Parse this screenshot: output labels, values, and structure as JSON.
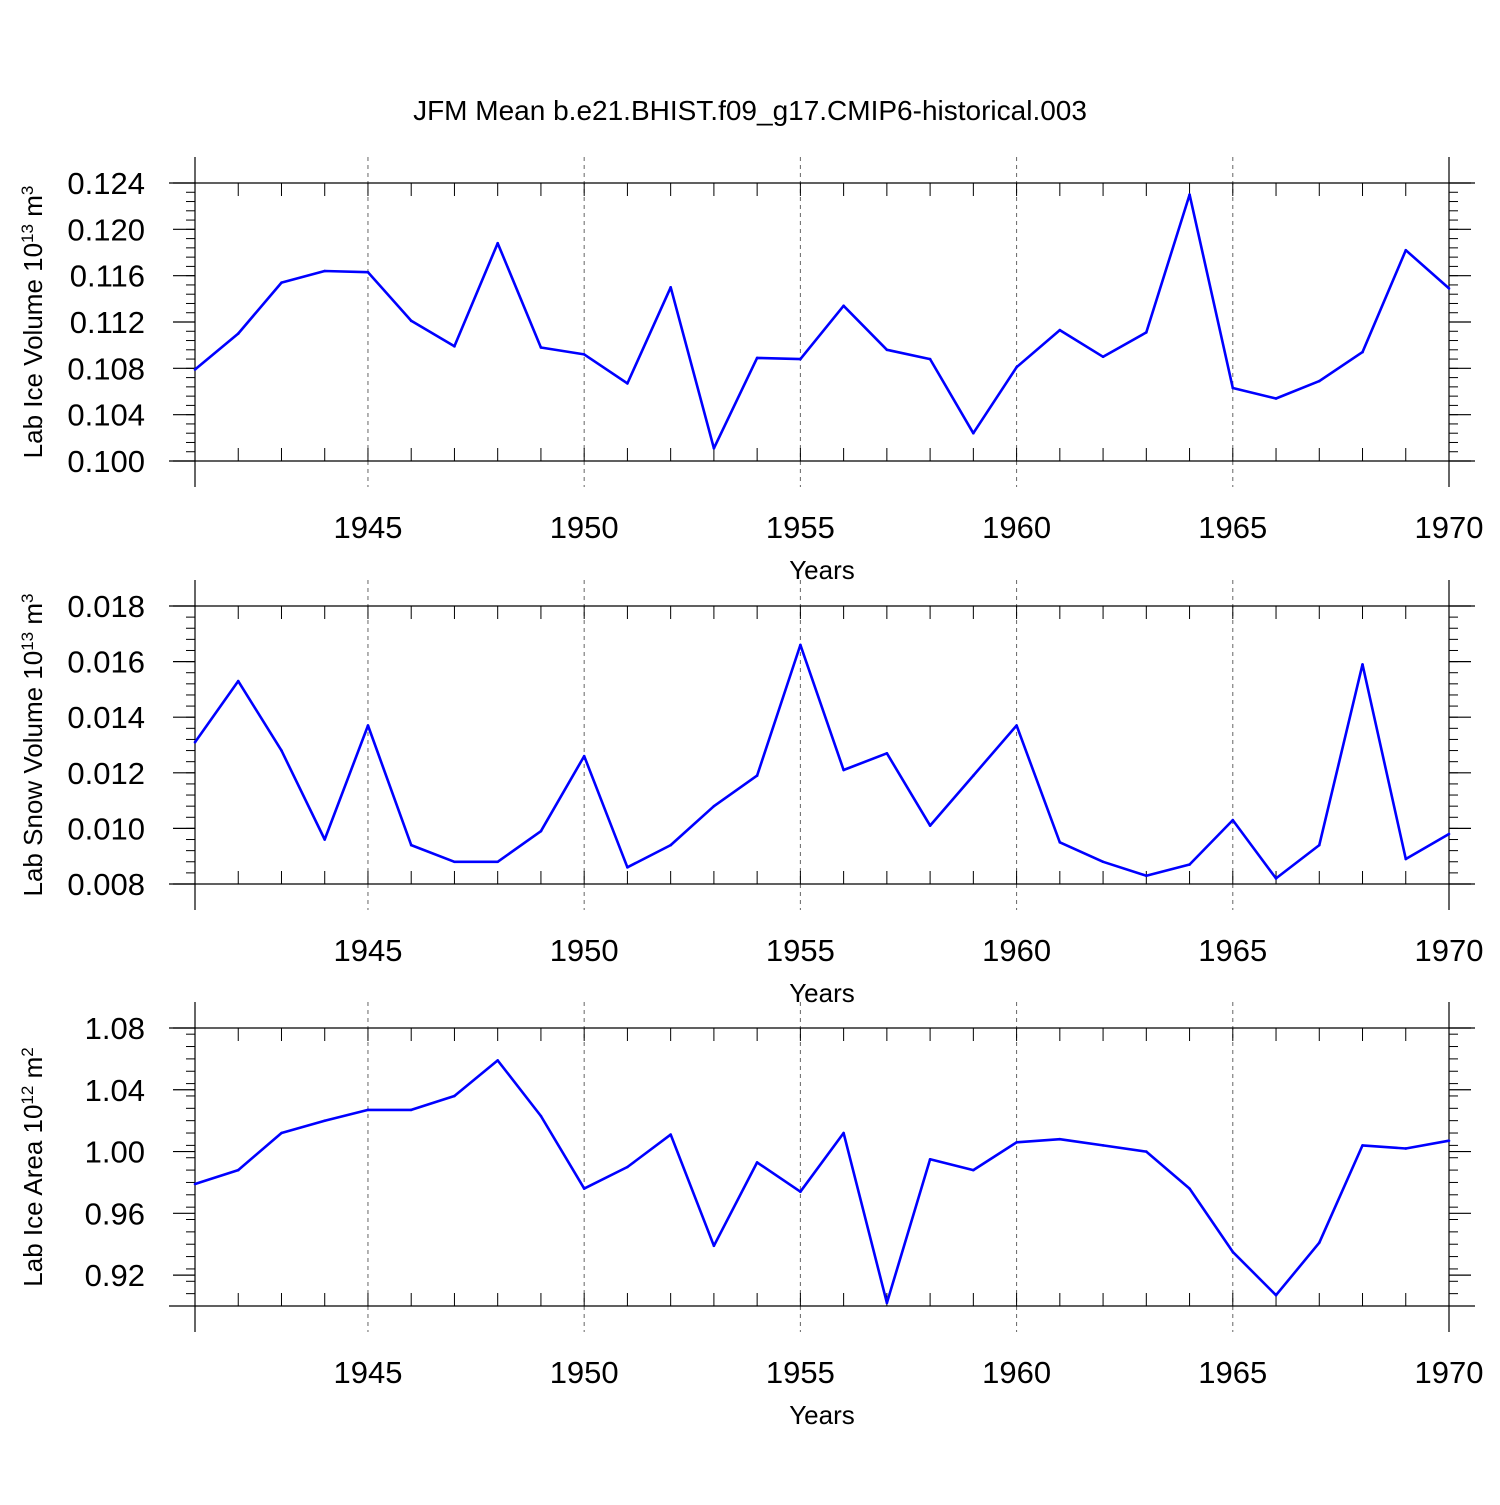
{
  "figure_title": "JFM Mean b.e21.BHIST.f09_g17.CMIP6-historical.003",
  "line_color": "#0000ff",
  "chart_data": [
    {
      "type": "line",
      "title": "JFM Mean b.e21.BHIST.f09_g17.CMIP6-historical.003",
      "ylabel": "Lab Ice Volume",
      "ylabel_unit": "10",
      "ylabel_exp": "13",
      "ylabel_unit2": "m",
      "ylabel_exp2": "3",
      "xlabel": "Years",
      "xlim": [
        1941,
        1970
      ],
      "ylim": [
        0.1,
        0.124
      ],
      "yticks": [
        "0.100",
        "0.104",
        "0.108",
        "0.112",
        "0.116",
        "0.120",
        "0.124"
      ],
      "xticks": [
        "1945",
        "1950",
        "1955",
        "1960",
        "1965",
        "1970"
      ],
      "x": [
        1941,
        1942,
        1943,
        1944,
        1945,
        1946,
        1947,
        1948,
        1949,
        1950,
        1951,
        1952,
        1953,
        1954,
        1955,
        1956,
        1957,
        1958,
        1959,
        1960,
        1961,
        1962,
        1963,
        1964,
        1965,
        1966,
        1967,
        1968,
        1969,
        1970
      ],
      "values": [
        0.1079,
        0.111,
        0.1154,
        0.1164,
        0.1163,
        0.1121,
        0.1099,
        0.1188,
        0.1098,
        0.1092,
        0.1067,
        0.115,
        0.1011,
        0.1089,
        0.1088,
        0.1134,
        0.1096,
        0.1088,
        0.1024,
        0.1081,
        0.1113,
        0.109,
        0.1111,
        0.123,
        0.1063,
        0.1054,
        0.1069,
        0.1094,
        0.1182,
        0.1149
      ]
    },
    {
      "type": "line",
      "ylabel": "Lab Snow Volume",
      "ylabel_unit": "10",
      "ylabel_exp": "13",
      "ylabel_unit2": "m",
      "ylabel_exp2": "3",
      "xlabel": "Years",
      "xlim": [
        1941,
        1970
      ],
      "ylim": [
        0.008,
        0.018
      ],
      "yticks": [
        "0.008",
        "0.010",
        "0.012",
        "0.014",
        "0.016",
        "0.018"
      ],
      "xticks": [
        "1945",
        "1950",
        "1955",
        "1960",
        "1965",
        "1970"
      ],
      "x": [
        1941,
        1942,
        1943,
        1944,
        1945,
        1946,
        1947,
        1948,
        1949,
        1950,
        1951,
        1952,
        1953,
        1954,
        1955,
        1956,
        1957,
        1958,
        1959,
        1960,
        1961,
        1962,
        1963,
        1964,
        1965,
        1966,
        1967,
        1968,
        1969,
        1970
      ],
      "values": [
        0.0131,
        0.0153,
        0.0128,
        0.0096,
        0.0137,
        0.0094,
        0.0088,
        0.0088,
        0.0099,
        0.0126,
        0.0086,
        0.0094,
        0.0108,
        0.0119,
        0.0166,
        0.0121,
        0.0127,
        0.0101,
        0.0119,
        0.0137,
        0.0095,
        0.0088,
        0.0083,
        0.0087,
        0.0103,
        0.0082,
        0.0094,
        0.0159,
        0.0089,
        0.0098
      ]
    },
    {
      "type": "line",
      "ylabel": "Lab Ice Area",
      "ylabel_unit": "10",
      "ylabel_exp": "12",
      "ylabel_unit2": "m",
      "ylabel_exp2": "2",
      "xlabel": "Years",
      "xlim": [
        1941,
        1970
      ],
      "ylim": [
        0.9,
        1.08
      ],
      "yticks": [
        "0.92",
        "0.96",
        "1.00",
        "1.04",
        "1.08"
      ],
      "xticks": [
        "1945",
        "1950",
        "1955",
        "1960",
        "1965",
        "1970"
      ],
      "x": [
        1941,
        1942,
        1943,
        1944,
        1945,
        1946,
        1947,
        1948,
        1949,
        1950,
        1951,
        1952,
        1953,
        1954,
        1955,
        1956,
        1957,
        1958,
        1959,
        1960,
        1961,
        1962,
        1963,
        1964,
        1965,
        1966,
        1967,
        1968,
        1969,
        1970
      ],
      "values": [
        0.979,
        0.988,
        1.012,
        1.02,
        1.027,
        1.027,
        1.036,
        1.059,
        1.023,
        0.976,
        0.99,
        1.011,
        0.939,
        0.993,
        0.974,
        1.012,
        0.902,
        0.995,
        0.988,
        1.006,
        1.008,
        1.004,
        1.0,
        0.976,
        0.935,
        0.907,
        0.941,
        1.004,
        1.002,
        1.007
      ]
    }
  ]
}
